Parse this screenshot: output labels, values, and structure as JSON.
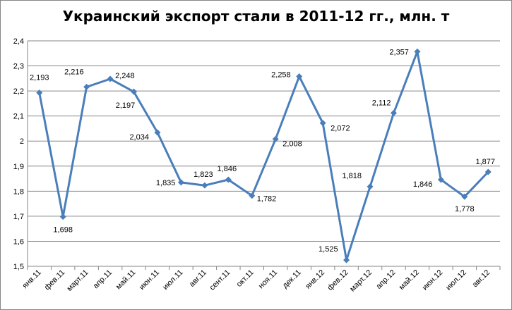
{
  "chart_data": {
    "type": "line",
    "title": "Украинский экспорт стали в 2011-12 гг., млн. т",
    "xlabel": "",
    "ylabel": "",
    "ylim": [
      1.5,
      2.4
    ],
    "y_ticks": [
      "1,5",
      "1,6",
      "1,7",
      "1,8",
      "1,9",
      "2",
      "2,1",
      "2,2",
      "2,3",
      "2,4"
    ],
    "grid": true,
    "legend": "none",
    "categories": [
      "янв.11",
      "фев.11",
      "март.11",
      "апр.11",
      "май.11",
      "июн.11",
      "июл.11",
      "авг.11",
      "сент.11",
      "окт.11",
      "ноя.11",
      "дек.11",
      "янв.12",
      "фев.12",
      "март.12",
      "апр.12",
      "май.12",
      "июн.12",
      "июл.12",
      "авг.12"
    ],
    "values": [
      2.193,
      1.698,
      2.216,
      2.248,
      2.197,
      2.034,
      1.835,
      1.823,
      1.846,
      1.782,
      2.008,
      2.258,
      2.072,
      1.525,
      1.818,
      2.112,
      2.357,
      1.846,
      1.778,
      1.877
    ],
    "data_labels": [
      "2,193",
      "1,698",
      "2,216",
      "2,248",
      "2,197",
      "2,034",
      "1,835",
      "1,823",
      "1,846",
      "1,782",
      "2,008",
      "2,258",
      "2,072",
      "1,525",
      "1,818",
      "2,112",
      "2,357",
      "1,846",
      "1,778",
      "1,877"
    ],
    "colors": {
      "line": "#4a7ebb",
      "marker": "#4a7ebb",
      "grid": "#868686",
      "axis": "#868686"
    }
  }
}
